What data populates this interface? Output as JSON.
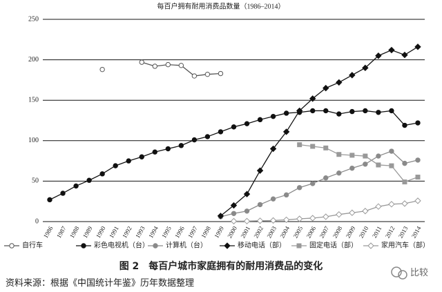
{
  "chart_data": {
    "type": "line",
    "title": "每百户拥有耐用消费品数量（1986–2014）",
    "categories": [
      "1986",
      "1987",
      "1988",
      "1989",
      "1990",
      "1991",
      "1992",
      "1993",
      "1994",
      "1995",
      "1996",
      "1997",
      "1998",
      "1999",
      "2000",
      "2001",
      "2002",
      "2003",
      "2004",
      "2005",
      "2006",
      "2007",
      "2008",
      "2009",
      "2010",
      "2011",
      "2012",
      "2013",
      "2014"
    ],
    "ylim": [
      0,
      250
    ],
    "yticks": [
      0,
      50,
      100,
      150,
      200,
      250
    ],
    "grid": true,
    "series": [
      {
        "name": "自行车",
        "color": "#555555",
        "marker": "circle",
        "filled": false,
        "values": [
          null,
          null,
          null,
          null,
          188,
          null,
          null,
          197,
          192,
          194,
          193,
          180,
          182,
          183,
          null,
          null,
          null,
          null,
          null,
          null,
          null,
          null,
          null,
          null,
          null,
          null,
          null,
          null,
          null
        ]
      },
      {
        "name": "彩色电视机（台）",
        "color": "#111111",
        "marker": "circle",
        "filled": true,
        "values": [
          27,
          35,
          44,
          51,
          59,
          69,
          75,
          80,
          86,
          90,
          94,
          101,
          105,
          111,
          117,
          121,
          126,
          130,
          134,
          135,
          137,
          137,
          133,
          136,
          137,
          135,
          137,
          119,
          122
        ]
      },
      {
        "name": "计算机（台）",
        "color": "#8a8a8a",
        "marker": "circle",
        "filled": true,
        "values": [
          null,
          null,
          null,
          null,
          null,
          null,
          null,
          null,
          null,
          null,
          null,
          null,
          null,
          6,
          10,
          13,
          21,
          28,
          33,
          42,
          47,
          54,
          60,
          66,
          71,
          81,
          87,
          72,
          76
        ]
      },
      {
        "name": "移动电话（部）",
        "color": "#111111",
        "marker": "diamond",
        "filled": true,
        "values": [
          null,
          null,
          null,
          null,
          null,
          null,
          null,
          null,
          null,
          null,
          null,
          null,
          null,
          7,
          20,
          34,
          63,
          90,
          111,
          137,
          152,
          165,
          172,
          181,
          190,
          205,
          212,
          206,
          216
        ]
      },
      {
        "name": "固定电话（部）",
        "color": "#999999",
        "marker": "square",
        "filled": true,
        "values": [
          null,
          null,
          null,
          null,
          null,
          null,
          null,
          null,
          null,
          null,
          null,
          null,
          null,
          null,
          null,
          null,
          null,
          null,
          null,
          95,
          93,
          91,
          83,
          82,
          81,
          70,
          69,
          49,
          55
        ]
      },
      {
        "name": "家用汽车（部）",
        "color": "#999999",
        "marker": "diamond",
        "filled": false,
        "values": [
          null,
          null,
          null,
          null,
          null,
          null,
          null,
          null,
          null,
          null,
          null,
          null,
          null,
          null,
          0.5,
          0.6,
          1,
          1.4,
          2.2,
          3.4,
          4.3,
          6,
          8.8,
          10.9,
          13,
          18.6,
          21.5,
          22.3,
          25.7
        ]
      }
    ]
  },
  "caption": "图 2　每百户城市家庭拥有的耐用消费品的变化",
  "source": "资料来源：根据《中国统计年鉴》历年数据整理",
  "watermark": "比较"
}
